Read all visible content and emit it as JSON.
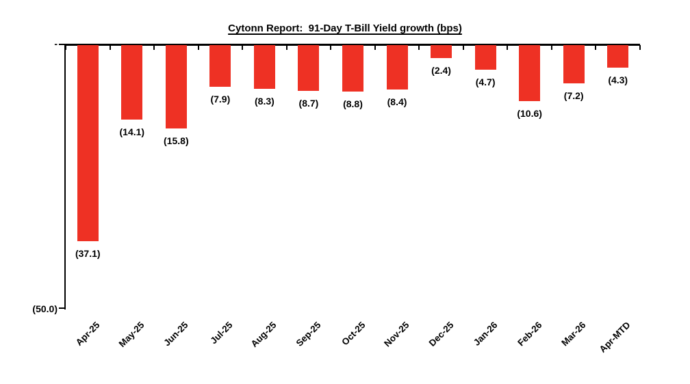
{
  "chart_data": {
    "type": "bar",
    "title": "Cytonn Report:  91-Day T-Bill Yield growth (bps)",
    "categories": [
      "Apr-25",
      "May-25",
      "Jun-25",
      "Jul-25",
      "Aug-25",
      "Sep-25",
      "Oct-25",
      "Nov-25",
      "Dec-25",
      "Jan-26",
      "Feb-26",
      "Mar-26",
      "Apr-MTD"
    ],
    "values": [
      -37.1,
      -14.1,
      -15.8,
      -7.9,
      -8.3,
      -8.7,
      -8.8,
      -8.4,
      -2.4,
      -4.7,
      -10.6,
      -7.2,
      -4.3
    ],
    "data_labels": [
      "(37.1)",
      "(14.1)",
      "(15.8)",
      "(7.9)",
      "(8.3)",
      "(8.7)",
      "(8.8)",
      "(8.4)",
      "(2.4)",
      "(4.7)",
      "(10.6)",
      "(7.2)",
      "(4.3)"
    ],
    "xlabel": "",
    "ylabel": "",
    "ylim": [
      -50,
      0
    ],
    "y_axis_ticks": [
      {
        "value": 0,
        "label": "-"
      },
      {
        "value": -50,
        "label": "(50.0)"
      }
    ],
    "bar_color": "#EE3124",
    "text_color": "#000000",
    "grid": false,
    "legend": false,
    "orientation": "vertical",
    "bars_direction": "downward-from-zero"
  }
}
